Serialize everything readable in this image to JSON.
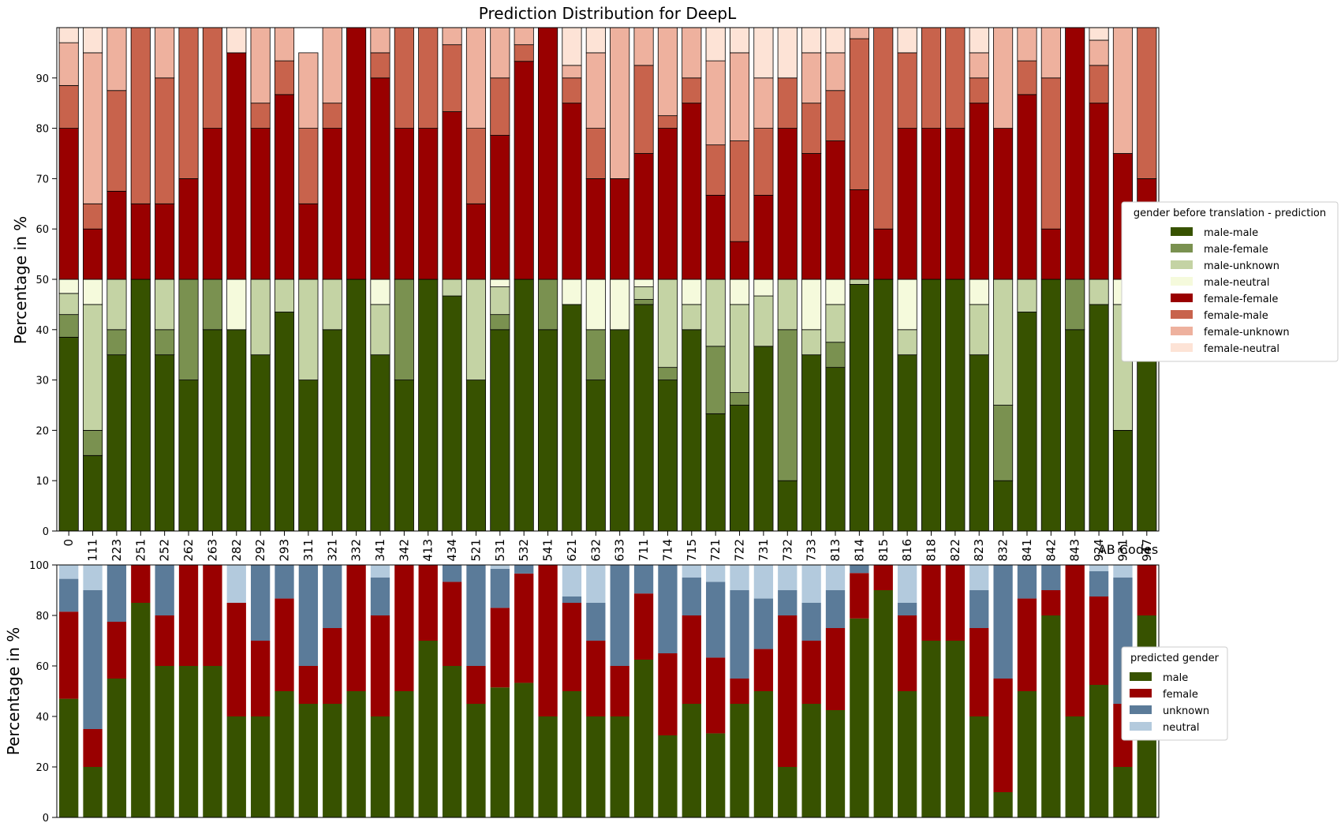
{
  "chart_data": [
    {
      "type": "bar",
      "stacked": true,
      "title": "Prediction Distribution for DeepL",
      "xlabel": "AB Codes",
      "ylabel": "Percentage in %",
      "ylim": [
        0,
        100
      ],
      "yticks": [
        0,
        10,
        20,
        30,
        40,
        50,
        60,
        70,
        80,
        90
      ],
      "grid": false,
      "legend_title": "gender before translation - prediction",
      "legend_position": "right",
      "categories": [
        "0",
        "111",
        "223",
        "251",
        "252",
        "262",
        "263",
        "282",
        "292",
        "293",
        "311",
        "321",
        "332",
        "341",
        "342",
        "413",
        "434",
        "521",
        "531",
        "532",
        "541",
        "621",
        "632",
        "633",
        "711",
        "714",
        "715",
        "721",
        "722",
        "731",
        "732",
        "733",
        "813",
        "814",
        "815",
        "816",
        "818",
        "822",
        "823",
        "832",
        "841",
        "842",
        "843",
        "924",
        "931",
        "947"
      ],
      "series": [
        {
          "name": "male-male",
          "color": "#375200",
          "values": [
            38.5,
            15,
            35,
            50,
            35,
            30,
            40,
            40,
            35,
            43.5,
            30,
            40,
            50,
            35,
            30,
            50,
            46.7,
            30,
            40,
            50,
            40,
            45,
            30,
            40,
            45,
            30,
            40,
            23.3,
            25,
            36.7,
            10,
            35,
            32.5,
            49,
            50,
            35,
            50,
            50,
            35,
            10,
            43.5,
            50,
            40,
            45,
            20,
            50
          ]
        },
        {
          "name": "male-female",
          "color": "#7a9150",
          "values": [
            4.5,
            5,
            5,
            0,
            5,
            20,
            10,
            0,
            0,
            0,
            0,
            0,
            0,
            0,
            20,
            0,
            0,
            0,
            3,
            0,
            10,
            0,
            10,
            0,
            1,
            2.5,
            0,
            13.4,
            2.5,
            0,
            30,
            0,
            5,
            0,
            0,
            0,
            0,
            0,
            0,
            15,
            0,
            0,
            10,
            0,
            0,
            0
          ]
        },
        {
          "name": "male-unknown",
          "color": "#c4d3a4",
          "values": [
            4.2,
            25,
            10,
            0,
            10,
            0,
            0,
            0,
            15,
            6.5,
            20,
            10,
            0,
            10,
            0,
            0,
            3.3,
            20,
            5.5,
            0,
            0,
            0,
            0,
            0,
            2.5,
            17.5,
            5,
            13.3,
            17.5,
            10,
            10,
            5,
            7.5,
            1,
            0,
            5,
            0,
            0,
            10,
            25,
            6.5,
            0,
            0,
            5,
            25,
            0
          ]
        },
        {
          "name": "male-neutral",
          "color": "#f5fadc",
          "values": [
            2.8,
            5,
            0,
            0,
            0,
            0,
            0,
            10,
            0,
            0,
            0,
            0,
            0,
            5,
            0,
            0,
            0,
            0,
            1.5,
            0,
            0,
            5,
            10,
            10,
            1.5,
            0,
            5,
            0,
            5,
            3.3,
            0,
            10,
            5,
            0,
            0,
            10,
            0,
            0,
            5,
            0,
            0,
            0,
            0,
            0,
            5,
            0
          ]
        },
        {
          "name": "female-female",
          "color": "#990000",
          "values": [
            30,
            10,
            17.5,
            15,
            15,
            20,
            30,
            45,
            30,
            36.7,
            15,
            30,
            50,
            40,
            30,
            30,
            33.3,
            15,
            28.6,
            43.3,
            50,
            35,
            20,
            20,
            25,
            30,
            35,
            16.7,
            7.5,
            16.7,
            30,
            25,
            27.5,
            17.8,
            10,
            30,
            30,
            30,
            35,
            30,
            36.7,
            10,
            50,
            35,
            25,
            20
          ]
        },
        {
          "name": "female-male",
          "color": "#c8634c",
          "values": [
            8.5,
            5,
            20,
            35,
            25,
            30,
            20,
            0,
            5,
            6.7,
            15,
            5,
            0,
            5,
            20,
            20,
            13.3,
            15,
            11.4,
            3.3,
            0,
            5,
            10,
            0,
            17.5,
            2.5,
            5,
            10,
            20,
            13.3,
            10,
            10,
            10,
            30,
            40,
            15,
            20,
            20,
            5,
            0,
            6.7,
            30,
            0,
            7.5,
            0,
            30
          ]
        },
        {
          "name": "female-unknown",
          "color": "#eeb19e",
          "values": [
            8.5,
            30,
            12.5,
            0,
            10,
            0,
            0,
            0,
            15,
            6.6,
            15,
            15,
            0,
            5,
            0,
            0,
            3.4,
            20,
            10,
            3.4,
            0,
            2.5,
            15,
            30,
            7.5,
            17.5,
            10,
            16.7,
            17.5,
            10,
            0,
            10,
            7.5,
            2.2,
            0,
            0,
            0,
            0,
            5,
            20,
            6.6,
            10,
            0,
            5,
            25,
            0
          ]
        },
        {
          "name": "female-neutral",
          "color": "#fde3d6",
          "values": [
            3,
            5,
            0,
            0,
            0,
            0,
            0,
            5,
            0,
            0,
            0,
            0,
            0,
            0,
            0,
            0,
            0,
            0,
            0,
            0,
            0,
            7.5,
            5,
            0,
            0,
            0,
            0,
            6.6,
            5,
            10,
            10,
            5,
            5,
            0,
            0,
            5,
            0,
            0,
            5,
            0,
            0,
            0,
            0,
            2.5,
            0,
            0
          ]
        }
      ]
    },
    {
      "type": "bar",
      "stacked": true,
      "xlabel": "",
      "ylabel": "Percentage in %",
      "ylim": [
        0,
        100
      ],
      "yticks": [
        0,
        20,
        40,
        60,
        80,
        100
      ],
      "grid": false,
      "legend_title": "predicted gender",
      "legend_position": "right",
      "categories": [
        "0",
        "111",
        "223",
        "251",
        "252",
        "262",
        "263",
        "282",
        "292",
        "293",
        "311",
        "321",
        "332",
        "341",
        "342",
        "413",
        "434",
        "521",
        "531",
        "532",
        "541",
        "621",
        "632",
        "633",
        "711",
        "714",
        "715",
        "721",
        "722",
        "731",
        "732",
        "733",
        "813",
        "814",
        "815",
        "816",
        "818",
        "822",
        "823",
        "832",
        "841",
        "842",
        "843",
        "924",
        "931",
        "947"
      ],
      "series": [
        {
          "name": "male",
          "color": "#375200",
          "values": [
            47,
            20,
            55,
            85,
            60,
            60,
            60,
            40,
            40,
            50,
            45,
            45,
            50,
            40,
            50,
            70,
            60,
            45,
            51.5,
            53.3,
            40,
            50,
            40,
            40,
            62.5,
            32.5,
            45,
            33.3,
            45,
            50,
            20,
            45,
            42.5,
            78.8,
            90,
            50,
            70,
            70,
            40,
            10,
            50,
            80,
            40,
            52.5,
            20,
            80
          ]
        },
        {
          "name": "female",
          "color": "#990000",
          "values": [
            34.5,
            15,
            22.5,
            15,
            20,
            40,
            40,
            45,
            30,
            36.7,
            15,
            30,
            50,
            40,
            50,
            30,
            33.3,
            15,
            31.5,
            43.3,
            60,
            35,
            30,
            20,
            26.2,
            32.5,
            35,
            30,
            10,
            16.7,
            60,
            25,
            32.5,
            18,
            10,
            30,
            30,
            30,
            35,
            45,
            36.7,
            10,
            60,
            35,
            25,
            20
          ]
        },
        {
          "name": "unknown",
          "color": "#5b7b99",
          "values": [
            13,
            55,
            22.5,
            0,
            20,
            0,
            0,
            0,
            30,
            13.3,
            40,
            25,
            0,
            15,
            0,
            0,
            6.7,
            40,
            15.5,
            3.4,
            0,
            2.5,
            15,
            40,
            11.3,
            35,
            15,
            30,
            35,
            20,
            10,
            15,
            15,
            3.2,
            0,
            5,
            0,
            0,
            15,
            45,
            13.3,
            10,
            0,
            10,
            50,
            0
          ]
        },
        {
          "name": "neutral",
          "color": "#b3cadd",
          "values": [
            5.5,
            10,
            0,
            0,
            0,
            0,
            0,
            15,
            0,
            0,
            0,
            0,
            0,
            5,
            0,
            0,
            0,
            0,
            1.5,
            0,
            0,
            12.5,
            15,
            0,
            0,
            0,
            5,
            6.7,
            10,
            13.3,
            10,
            15,
            10,
            0,
            0,
            15,
            0,
            0,
            10,
            0,
            0,
            0,
            0,
            2.5,
            5,
            0
          ]
        }
      ]
    }
  ]
}
